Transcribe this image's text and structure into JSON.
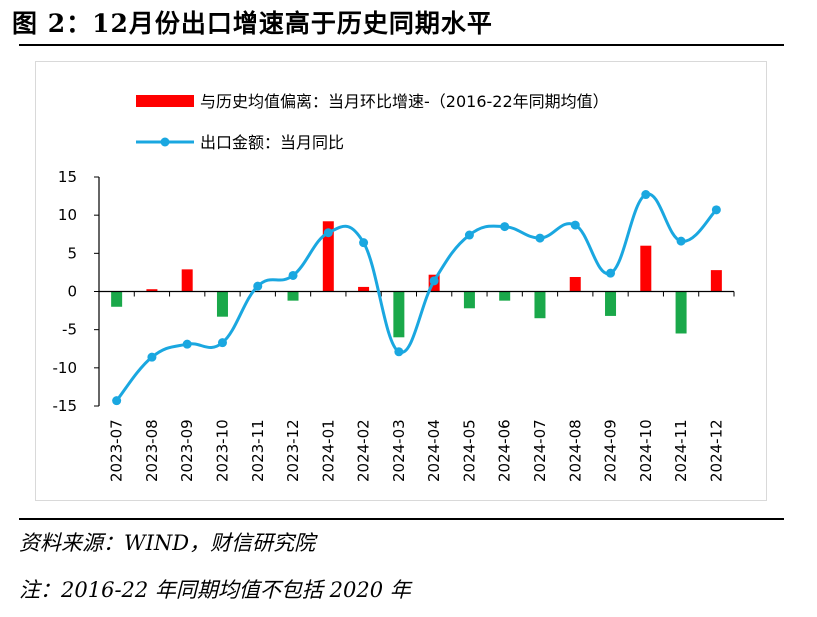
{
  "figure_title": "图 2：12月份出口增速高于历史同期水平",
  "source_note": "资料来源：WIND，财信研究院",
  "footnote": "注：2016-22 年同期均值不包括 2020 年",
  "colors": {
    "bar_positive": "#ff0000",
    "bar_negative": "#1aa84a",
    "line": "#1aa7e0",
    "axis": "#000000"
  },
  "chart_data": {
    "type": "bar+line",
    "title": "12月份出口增速高于历史同期水平",
    "categories": [
      "2023-07",
      "2023-08",
      "2023-09",
      "2023-10",
      "2023-11",
      "2023-12",
      "2024-01",
      "2024-02",
      "2024-03",
      "2024-04",
      "2024-05",
      "2024-06",
      "2024-07",
      "2024-08",
      "2024-09",
      "2024-10",
      "2024-11",
      "2024-12"
    ],
    "series": [
      {
        "name": "与历史均值偏离：当月环比增速-（2016-22年同期均值）",
        "kind": "bar",
        "values": [
          -2.0,
          0.3,
          2.9,
          -3.3,
          0.0,
          -1.2,
          9.2,
          0.6,
          -6.0,
          2.2,
          -2.2,
          -1.2,
          -3.5,
          1.9,
          -3.2,
          6.0,
          -5.5,
          2.8
        ]
      },
      {
        "name": "出口金额：当月同比",
        "kind": "line",
        "values": [
          -14.3,
          -8.6,
          -6.9,
          -6.7,
          0.7,
          2.1,
          7.7,
          6.4,
          -7.9,
          1.4,
          7.4,
          8.5,
          7.0,
          8.7,
          2.4,
          12.7,
          6.6,
          10.7
        ]
      }
    ],
    "ylim": [
      -15,
      15
    ],
    "yticks": [
      "15",
      "10",
      "5",
      "0",
      "-5",
      "-10",
      "-15"
    ],
    "ytick_values": [
      15,
      10,
      5,
      0,
      -5,
      -10,
      -15
    ],
    "xlabel": "",
    "ylabel": "",
    "legend": "top-left"
  }
}
